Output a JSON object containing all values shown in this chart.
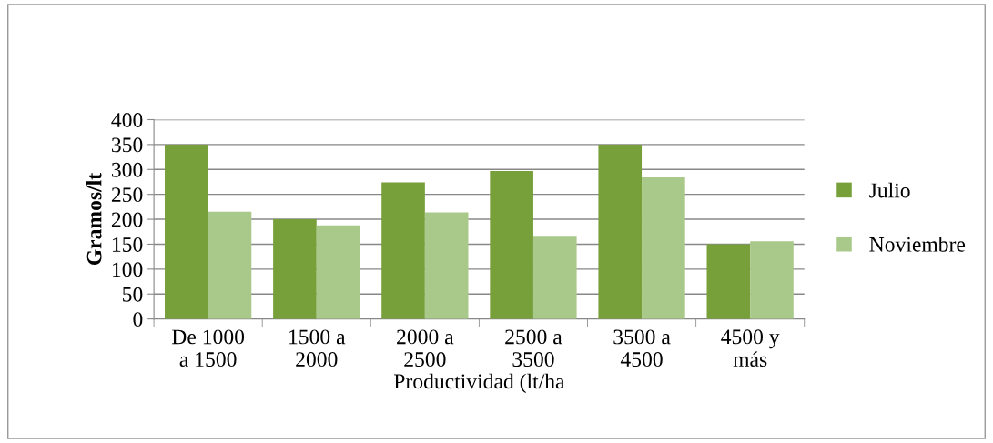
{
  "chart_data": {
    "type": "bar",
    "xlabel": "Productividad (lt/ha",
    "ylabel": "Gramos/lt",
    "categories": [
      "De 1000\na 1500",
      "1500 a\n2000",
      "2000 a\n2500",
      "2500 a\n3500",
      "3500 a\n4500",
      "4500 y\nmás"
    ],
    "series": [
      {
        "name": "Julio",
        "color": "#77a03a",
        "values": [
          350,
          200,
          274,
          297,
          350,
          150
        ]
      },
      {
        "name": "Noviembre",
        "color": "#a9c98a",
        "values": [
          215,
          188,
          214,
          167,
          284,
          156
        ]
      }
    ],
    "ylim": [
      0,
      400
    ],
    "yticks": [
      0,
      50,
      100,
      150,
      200,
      250,
      300,
      350,
      400
    ],
    "grid": "y",
    "legend": "right"
  }
}
